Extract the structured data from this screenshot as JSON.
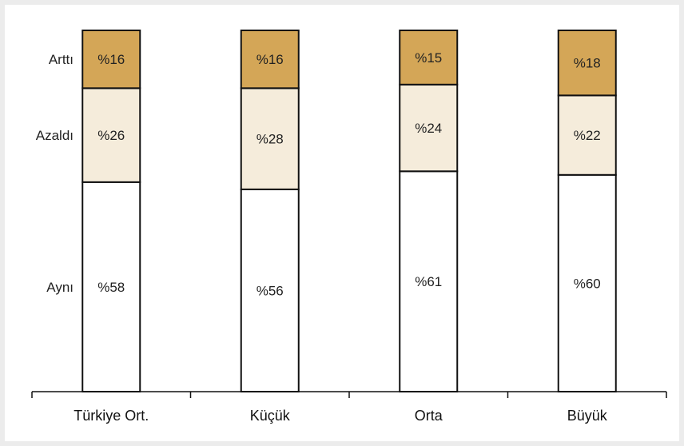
{
  "chart_data": {
    "type": "bar",
    "stacked": true,
    "normalized_to": 100,
    "categories": [
      "Türkiye Ort.",
      "Küçük",
      "Orta",
      "Büyük"
    ],
    "series": [
      {
        "name": "Aynı",
        "values": [
          58,
          56,
          61,
          60
        ],
        "labels": [
          "%58",
          "%56",
          "%61",
          "%60"
        ],
        "color": "#ffffff"
      },
      {
        "name": "Azaldı",
        "values": [
          26,
          28,
          24,
          22
        ],
        "labels": [
          "%26",
          "%28",
          "%24",
          "%22"
        ],
        "color": "#f5ecdb"
      },
      {
        "name": "Arttı",
        "values": [
          16,
          16,
          15,
          18
        ],
        "labels": [
          "%16",
          "%16",
          "%15",
          "%18"
        ],
        "color": "#d4a657"
      }
    ],
    "row_labels": [
      "Arttı",
      "Azaldı",
      "Aynı"
    ],
    "ylim": [
      0,
      100
    ],
    "grid": false,
    "legend": "left"
  }
}
